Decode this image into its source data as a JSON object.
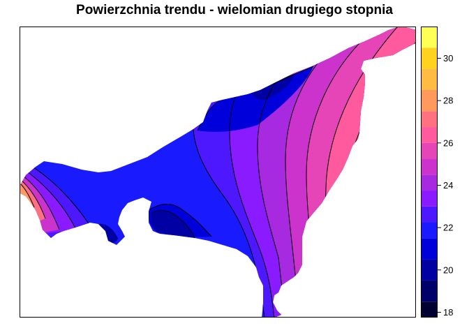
{
  "title": "Powierzchnia trendu - wielomian drugiego stopnia",
  "legend": {
    "min": 17.75,
    "max": 31.5,
    "ticks": [
      "18",
      "20",
      "22",
      "24",
      "26",
      "28",
      "30"
    ],
    "tick_values": [
      18,
      20,
      22,
      24,
      26,
      28,
      30
    ],
    "bands": [
      {
        "from": 17.75,
        "to": 18.5,
        "color": "#000033"
      },
      {
        "from": 18.5,
        "to": 19.5,
        "color": "#00006b"
      },
      {
        "from": 19.5,
        "to": 20.5,
        "color": "#0000a3"
      },
      {
        "from": 20.5,
        "to": 21.5,
        "color": "#0000db"
      },
      {
        "from": 21.5,
        "to": 22.25,
        "color": "#1a1aff"
      },
      {
        "from": 22.25,
        "to": 23.0,
        "color": "#4e18ff"
      },
      {
        "from": 23.0,
        "to": 23.75,
        "color": "#8a1aff"
      },
      {
        "from": 23.75,
        "to": 24.5,
        "color": "#a82ae0"
      },
      {
        "from": 24.5,
        "to": 25.25,
        "color": "#cc33cc"
      },
      {
        "from": 25.25,
        "to": 26.0,
        "color": "#e645b8"
      },
      {
        "from": 26.0,
        "to": 26.75,
        "color": "#ff5a9e"
      },
      {
        "from": 26.75,
        "to": 27.5,
        "color": "#ff7080"
      },
      {
        "from": 27.5,
        "to": 28.5,
        "color": "#ff9a5c"
      },
      {
        "from": 28.5,
        "to": 29.5,
        "color": "#ffbb44"
      },
      {
        "from": 29.5,
        "to": 30.5,
        "color": "#ffd21f"
      },
      {
        "from": 30.5,
        "to": 31.5,
        "color": "#ffff55"
      }
    ]
  }
}
